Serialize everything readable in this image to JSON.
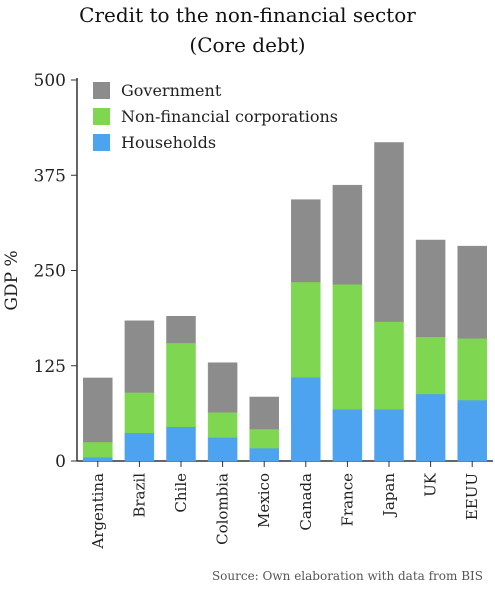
{
  "title": "Credit to the non-financial sector",
  "subtitle": "(Core debt)",
  "source": "Source: Own elaboration with data from BIS",
  "chart_data": {
    "type": "bar",
    "stacked": true,
    "categories": [
      "Argentina",
      "Brazil",
      "Chile",
      "Colombia",
      "Mexico",
      "Canada",
      "France",
      "Japan",
      "UK",
      "EEUU"
    ],
    "series": [
      {
        "name": "Households",
        "color": "#4da3f0",
        "values": [
          5,
          37,
          45,
          31,
          17,
          110,
          68,
          68,
          88,
          80
        ]
      },
      {
        "name": "Non-financial corporations",
        "color": "#7fd650",
        "values": [
          20,
          53,
          110,
          33,
          25,
          125,
          164,
          115,
          75,
          81
        ]
      },
      {
        "name": "Government",
        "color": "#8c8c8c",
        "values": [
          84,
          94,
          35,
          65,
          42,
          108,
          130,
          235,
          127,
          121
        ]
      }
    ],
    "legend_order": [
      "Government",
      "Non-financial corporations",
      "Households"
    ],
    "legend_position": "top-left",
    "title": "Credit to the non-financial sector",
    "subtitle": "(Core debt)",
    "xlabel": "",
    "ylabel": "GDP %",
    "ylim": [
      0,
      500
    ],
    "yticks": [
      0,
      125,
      250,
      375,
      500
    ],
    "ytick_labels": [
      "0",
      "125",
      "250",
      "375",
      "500"
    ],
    "grid": false
  }
}
